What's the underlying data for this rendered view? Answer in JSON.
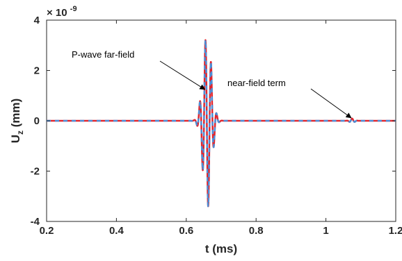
{
  "chart_data": {
    "type": "line",
    "xlabel": "t (ms)",
    "ylabel_main": "U",
    "ylabel_sub": "z",
    "ylabel_unit": "(mm)",
    "exponent_base": "× 10",
    "exponent_power": "-9",
    "xlim": [
      0.2,
      1.2
    ],
    "ylim": [
      -4,
      4
    ],
    "xticks": [
      0.2,
      0.4,
      0.6,
      0.8,
      1.0,
      1.2
    ],
    "xtick_labels": [
      "0.2",
      "0.4",
      "0.6",
      "0.8",
      "1",
      "1.2"
    ],
    "yticks": [
      -4,
      -2,
      0,
      2,
      4
    ],
    "ytick_labels": [
      "-4",
      "-2",
      "0",
      "2",
      "4"
    ],
    "grid": false,
    "series": [
      {
        "color": "#e0262e",
        "style": "solid",
        "pulses": [
          {
            "center": 0.66,
            "amplitude": 3.5,
            "frequency": 62,
            "width": 0.017,
            "peak": 0.671
          },
          {
            "center": 1.075,
            "amplitude": 0.09,
            "frequency": 62,
            "width": 0.009
          }
        ]
      },
      {
        "color": "#4a90d9",
        "style": "dashed",
        "pulses": [
          {
            "center": 0.66,
            "amplitude": 3.5,
            "frequency": 62,
            "width": 0.017,
            "peak": 0.671
          },
          {
            "center": 1.075,
            "amplitude": 0.09,
            "frequency": 62,
            "width": 0.009
          }
        ]
      }
    ],
    "annotations": [
      {
        "text": "P-wave far-field",
        "target": [
          0.653,
          1.25
        ]
      },
      {
        "text": "near-field term",
        "target": [
          1.072,
          0.12
        ]
      }
    ]
  }
}
